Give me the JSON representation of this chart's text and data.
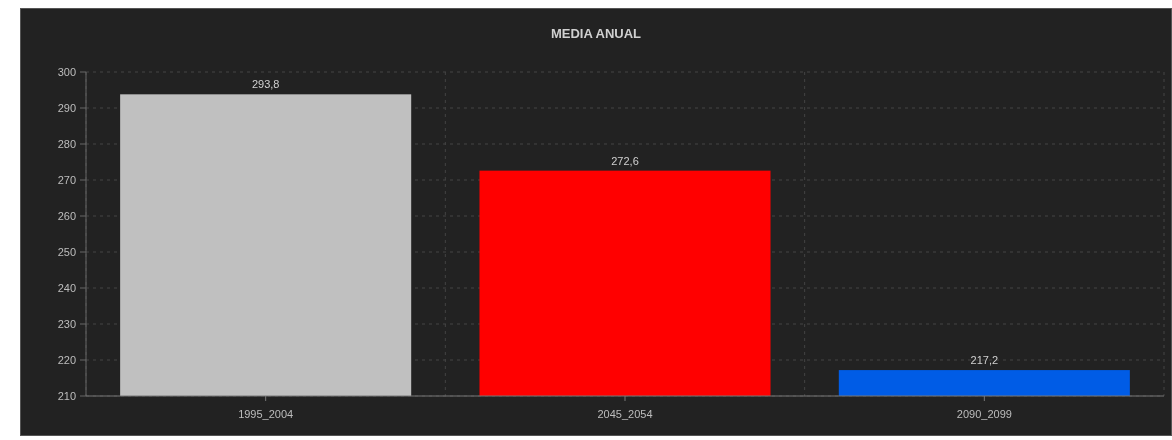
{
  "chart_data": {
    "type": "bar",
    "title": "MEDIA ANUAL",
    "categories": [
      "1995_2004",
      "2045_2054",
      "2090_2099"
    ],
    "values": [
      293.8,
      272.6,
      217.2
    ],
    "colors": [
      "#c0c0c0",
      "#ff0000",
      "#005ce6"
    ],
    "value_labels": [
      "293,8",
      "272,6",
      "217,2"
    ],
    "ylim": [
      210,
      300
    ],
    "yticks": [
      210,
      220,
      230,
      240,
      250,
      260,
      270,
      280,
      290,
      300
    ],
    "grid": true
  }
}
